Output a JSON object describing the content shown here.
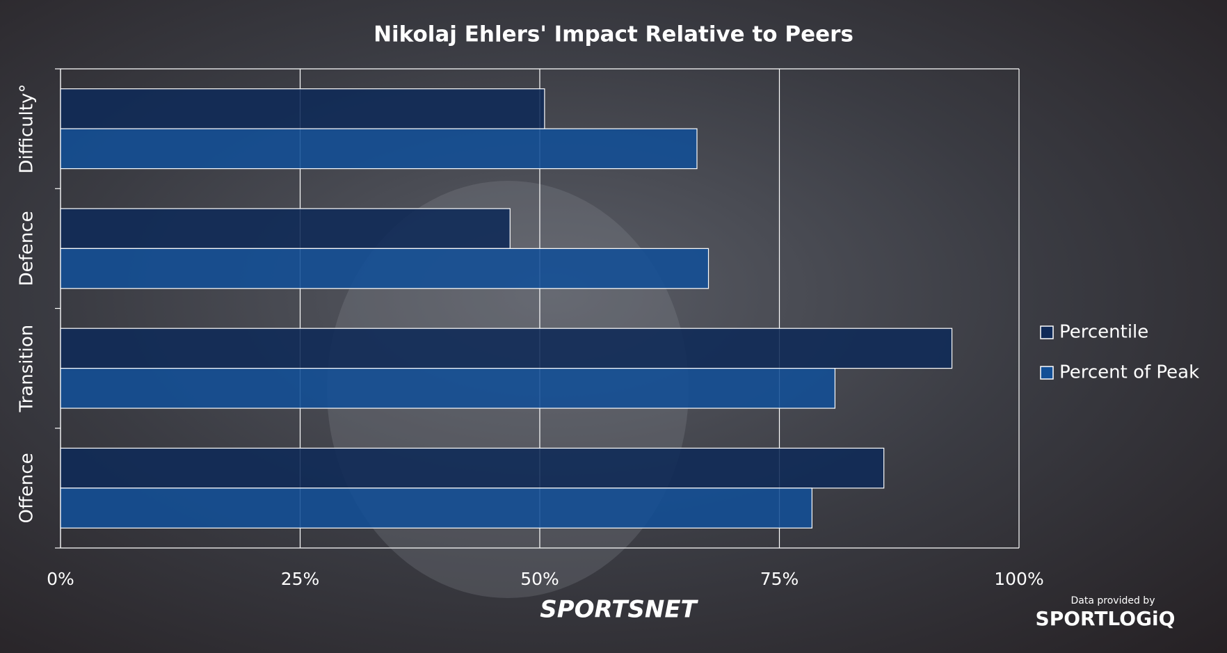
{
  "chart_data": {
    "type": "hbar",
    "title": "Nikolaj Ehlers' Impact Relative to Peers",
    "categories": [
      "Offence",
      "Transition",
      "Defence",
      "Difficulty°"
    ],
    "series": [
      {
        "name": "Percentile",
        "color": "#0f2a58",
        "values": [
          85.9,
          93.0,
          46.9,
          50.5
        ]
      },
      {
        "name": "Percent of Peak",
        "color": "#124f96",
        "values": [
          78.4,
          80.8,
          67.6,
          66.4
        ]
      }
    ],
    "xlim": [
      0,
      100
    ],
    "xticks": [
      {
        "value": 0,
        "label": "0%"
      },
      {
        "value": 25,
        "label": "25%"
      },
      {
        "value": 50,
        "label": "50%"
      },
      {
        "value": 75,
        "label": "75%"
      },
      {
        "value": 100,
        "label": "100%"
      }
    ],
    "grid": true,
    "legend": "right"
  },
  "logos": {
    "broadcaster": "SPORTSNET",
    "credit": "Data provided by",
    "provider": "SPORTLOGiQ"
  }
}
